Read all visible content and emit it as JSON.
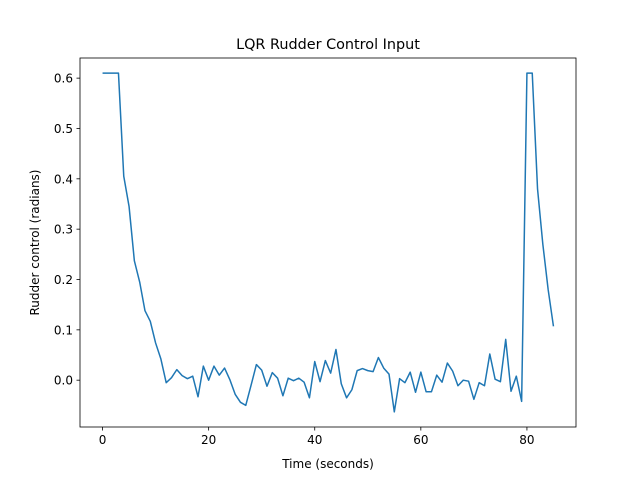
{
  "chart_data": {
    "type": "line",
    "title": "LQR Rudder Control Input",
    "xlabel": "Time (seconds)",
    "ylabel": "Rudder control (radians)",
    "xlim": [
      -4.25,
      89.25
    ],
    "ylim": [
      -0.093,
      0.64
    ],
    "grid": false,
    "x_ticks": [
      0,
      20,
      40,
      60,
      80
    ],
    "y_ticks": [
      0.0,
      0.1,
      0.2,
      0.3,
      0.4,
      0.5,
      0.6
    ],
    "x_tick_labels": [
      "0",
      "20",
      "40",
      "60",
      "80"
    ],
    "y_tick_labels": [
      "0.0",
      "0.1",
      "0.2",
      "0.3",
      "0.4",
      "0.5",
      "0.6"
    ],
    "series": [
      {
        "color": "#1f77b4",
        "x": [
          0,
          1,
          2,
          3,
          4,
          5,
          6,
          7,
          8,
          9,
          10,
          11,
          12,
          13,
          14,
          15,
          16,
          17,
          18,
          19,
          20,
          21,
          22,
          23,
          24,
          25,
          26,
          27,
          28,
          29,
          30,
          31,
          32,
          33,
          34,
          35,
          36,
          37,
          38,
          39,
          40,
          41,
          42,
          43,
          44,
          45,
          46,
          47,
          48,
          49,
          50,
          51,
          52,
          53,
          54,
          55,
          56,
          57,
          58,
          59,
          60,
          61,
          62,
          63,
          64,
          65,
          66,
          67,
          68,
          69,
          70,
          71,
          72,
          73,
          74,
          75,
          76,
          77,
          78,
          79,
          80,
          81,
          82,
          83,
          84,
          85
        ],
        "y": [
          0.61,
          0.61,
          0.61,
          0.61,
          0.405,
          0.345,
          0.237,
          0.195,
          0.138,
          0.117,
          0.074,
          0.042,
          -0.005,
          0.005,
          0.021,
          0.009,
          0.003,
          0.008,
          -0.033,
          0.028,
          0.0,
          0.028,
          0.01,
          0.024,
          0.001,
          -0.028,
          -0.044,
          -0.05,
          -0.01,
          0.031,
          0.02,
          -0.012,
          0.015,
          0.004,
          -0.031,
          0.004,
          -0.001,
          0.004,
          -0.004,
          -0.035,
          0.037,
          -0.003,
          0.039,
          0.014,
          0.061,
          -0.007,
          -0.035,
          -0.019,
          0.019,
          0.023,
          0.019,
          0.017,
          0.045,
          0.024,
          0.012,
          -0.063,
          0.003,
          -0.005,
          0.016,
          -0.024,
          0.016,
          -0.023,
          -0.023,
          0.01,
          -0.004,
          0.034,
          0.018,
          -0.011,
          0.0,
          -0.002,
          -0.038,
          -0.005,
          -0.011,
          0.052,
          0.002,
          -0.003,
          0.081,
          -0.022,
          0.008,
          -0.042,
          0.61,
          0.61,
          0.38,
          0.27,
          0.18,
          0.107
        ]
      }
    ]
  }
}
